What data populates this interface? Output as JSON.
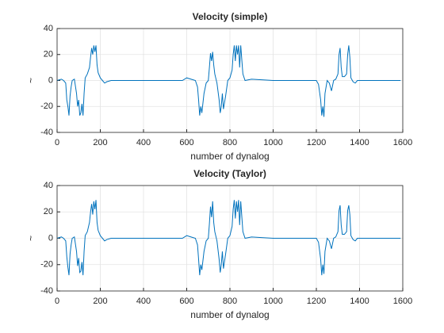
{
  "chart_data": [
    {
      "type": "line",
      "title": "Velocity (simple)",
      "xlabel": "number of dynalog",
      "ylabel": "~",
      "x": [
        0,
        20,
        30,
        40,
        45,
        50,
        55,
        60,
        65,
        70,
        80,
        90,
        95,
        100,
        105,
        110,
        115,
        120,
        125,
        130,
        140,
        150,
        155,
        160,
        165,
        170,
        175,
        180,
        185,
        190,
        200,
        210,
        220,
        230,
        250,
        300,
        400,
        500,
        580,
        600,
        620,
        640,
        650,
        655,
        660,
        665,
        670,
        680,
        690,
        700,
        705,
        710,
        715,
        720,
        725,
        730,
        740,
        750,
        755,
        760,
        765,
        770,
        780,
        790,
        800,
        810,
        815,
        820,
        825,
        830,
        835,
        840,
        845,
        850,
        860,
        870,
        900,
        1000,
        1100,
        1200,
        1210,
        1220,
        1225,
        1230,
        1235,
        1240,
        1250,
        1260,
        1270,
        1280,
        1290,
        1300,
        1305,
        1310,
        1315,
        1320,
        1330,
        1340,
        1345,
        1350,
        1355,
        1360,
        1370,
        1380,
        1390,
        1400,
        1500,
        1590
      ],
      "series": [
        {
          "name": "Velocity (simple)",
          "color": "#0072bd",
          "values": [
            0,
            1,
            0,
            -2,
            -15,
            -20,
            -27,
            -12,
            -5,
            0,
            1,
            -10,
            -20,
            -15,
            -27,
            -25,
            -18,
            -27,
            -10,
            2,
            5,
            10,
            18,
            25,
            20,
            27,
            22,
            27,
            12,
            6,
            2,
            0,
            -2,
            -1,
            0,
            0,
            0,
            0,
            0,
            2,
            1,
            0,
            -5,
            -15,
            -27,
            -20,
            -25,
            -10,
            -2,
            0,
            10,
            21,
            15,
            22,
            12,
            5,
            -2,
            -15,
            -25,
            -20,
            -10,
            -22,
            -12,
            0,
            2,
            8,
            20,
            27,
            15,
            27,
            20,
            27,
            10,
            27,
            5,
            0,
            1,
            0,
            0,
            0,
            -3,
            -15,
            -27,
            -20,
            -28,
            -10,
            0,
            -2,
            -8,
            0,
            1,
            5,
            20,
            25,
            10,
            3,
            3,
            5,
            20,
            27,
            18,
            2,
            -1,
            -2,
            0,
            0,
            0,
            0
          ]
        }
      ],
      "xlim": [
        0,
        1600
      ],
      "xticks": [
        0,
        200,
        400,
        600,
        800,
        1000,
        1200,
        1400,
        1600
      ],
      "ylim": [
        -40,
        40
      ],
      "yticks": [
        -40,
        -20,
        0,
        20,
        40
      ],
      "grid": true
    },
    {
      "type": "line",
      "title": "Velocity (Taylor)",
      "xlabel": "number of dynalog",
      "ylabel": "~",
      "x": [
        0,
        20,
        30,
        40,
        45,
        50,
        55,
        60,
        65,
        70,
        80,
        90,
        95,
        100,
        105,
        110,
        115,
        120,
        125,
        130,
        140,
        150,
        155,
        160,
        165,
        170,
        175,
        180,
        185,
        190,
        200,
        210,
        220,
        230,
        250,
        300,
        400,
        500,
        580,
        600,
        620,
        640,
        650,
        655,
        660,
        665,
        670,
        680,
        690,
        700,
        705,
        710,
        715,
        720,
        725,
        730,
        740,
        750,
        755,
        760,
        765,
        770,
        780,
        790,
        800,
        810,
        815,
        820,
        825,
        830,
        835,
        840,
        845,
        850,
        860,
        870,
        900,
        1000,
        1100,
        1200,
        1210,
        1220,
        1225,
        1230,
        1235,
        1240,
        1250,
        1260,
        1270,
        1280,
        1290,
        1300,
        1305,
        1310,
        1315,
        1320,
        1330,
        1340,
        1345,
        1350,
        1355,
        1360,
        1370,
        1380,
        1390,
        1400,
        1500,
        1590
      ],
      "series": [
        {
          "name": "Velocity (Taylor)",
          "color": "#0072bd",
          "values": [
            0,
            1,
            0,
            -2,
            -14,
            -22,
            -28,
            -12,
            -5,
            0,
            1,
            -10,
            -21,
            -15,
            -26,
            -25,
            -18,
            -28,
            -10,
            2,
            5,
            12,
            20,
            26,
            18,
            28,
            22,
            29,
            12,
            6,
            2,
            0,
            -2,
            -1,
            0,
            0,
            0,
            0,
            0,
            2,
            1,
            0,
            -5,
            -16,
            -28,
            -20,
            -24,
            -10,
            -2,
            0,
            11,
            24,
            16,
            28,
            12,
            5,
            -2,
            -16,
            -26,
            -20,
            -10,
            -23,
            -12,
            0,
            2,
            9,
            22,
            29,
            15,
            28,
            20,
            29,
            10,
            28,
            5,
            0,
            1,
            0,
            0,
            0,
            -3,
            -16,
            -28,
            -20,
            -27,
            -10,
            0,
            -2,
            -8,
            0,
            1,
            5,
            21,
            25,
            10,
            3,
            3,
            5,
            21,
            25,
            18,
            2,
            -1,
            -2,
            0,
            0,
            0,
            0
          ]
        }
      ],
      "xlim": [
        0,
        1600
      ],
      "xticks": [
        0,
        200,
        400,
        600,
        800,
        1000,
        1200,
        1400,
        1600
      ],
      "ylim": [
        -40,
        40
      ],
      "yticks": [
        -40,
        -20,
        0,
        20,
        40
      ],
      "grid": true
    }
  ]
}
